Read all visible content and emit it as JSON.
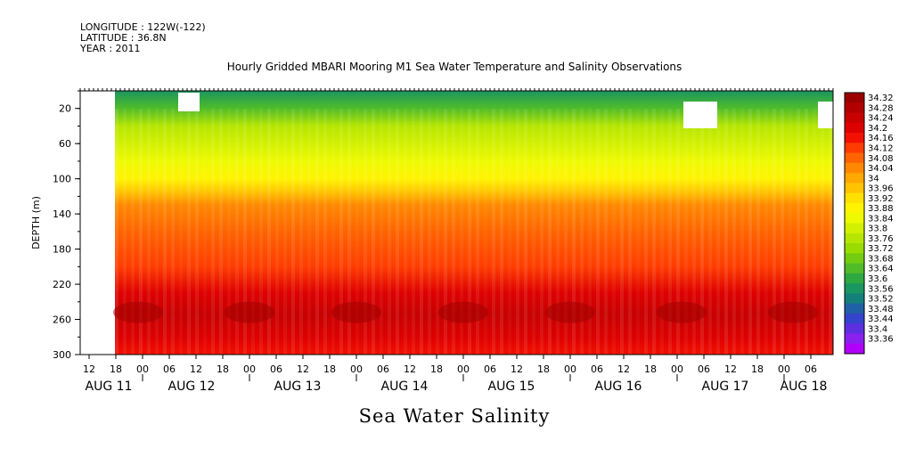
{
  "header": {
    "longitude": "LONGITUDE : 122W(-122)",
    "latitude": "LATITUDE : 36.8N",
    "year": "YEAR : 2011"
  },
  "chart_data": {
    "type": "heatmap",
    "title": "Hourly Gridded MBARI Mooring M1 Sea Water Temperature and Salinity Observations",
    "xlabel": "Sea Water Salinity",
    "ylabel": "DEPTH (m)",
    "ylim": [
      300,
      0
    ],
    "y_ticks": [
      20,
      60,
      100,
      140,
      180,
      220,
      260,
      300
    ],
    "x_hour_ticks": [
      "12",
      "18",
      "00",
      "06",
      "12",
      "18",
      "00",
      "06",
      "12",
      "18",
      "00",
      "06",
      "12",
      "18",
      "00",
      "06",
      "12",
      "18",
      "00",
      "06",
      "12",
      "18",
      "00",
      "06",
      "12",
      "18",
      "00",
      "06"
    ],
    "x_day_labels": [
      "AUG 11",
      "AUG 12",
      "AUG 13",
      "AUG 14",
      "AUG 15",
      "AUG 16",
      "AUG 17",
      "AUG 18"
    ],
    "colorbar_levels": [
      "34.32",
      "34.28",
      "34.24",
      "34.2",
      "34.16",
      "34.12",
      "34.08",
      "34.04",
      "34",
      "33.96",
      "33.92",
      "33.88",
      "33.84",
      "33.8",
      "33.76",
      "33.72",
      "33.68",
      "33.64",
      "33.6",
      "33.56",
      "33.52",
      "33.48",
      "33.44",
      "33.4",
      "33.36"
    ],
    "colorbar_colors": [
      "#9c0000",
      "#b20000",
      "#c80000",
      "#de0000",
      "#f21000",
      "#ff3c00",
      "#ff6400",
      "#ff8800",
      "#ffa800",
      "#ffc400",
      "#ffe000",
      "#fff400",
      "#eefa00",
      "#d2f000",
      "#b6e600",
      "#98dc00",
      "#74cc10",
      "#50bc28",
      "#2ea840",
      "#1a9660",
      "#14807c",
      "#2060a4",
      "#3444cc",
      "#5c30e0",
      "#8a20ee",
      "#b000f8"
    ],
    "depth_profile": [
      {
        "depth": 0,
        "salinity": 33.56
      },
      {
        "depth": 20,
        "salinity": 33.66
      },
      {
        "depth": 40,
        "salinity": 33.76
      },
      {
        "depth": 60,
        "salinity": 33.82
      },
      {
        "depth": 80,
        "salinity": 33.86
      },
      {
        "depth": 100,
        "salinity": 33.91
      },
      {
        "depth": 115,
        "salinity": 33.98
      },
      {
        "depth": 130,
        "salinity": 34.05
      },
      {
        "depth": 160,
        "salinity": 34.1
      },
      {
        "depth": 200,
        "salinity": 34.13
      },
      {
        "depth": 230,
        "salinity": 34.2
      },
      {
        "depth": 255,
        "salinity": 34.26
      },
      {
        "depth": 280,
        "salinity": 34.22
      },
      {
        "depth": 300,
        "salinity": 34.18
      }
    ]
  }
}
